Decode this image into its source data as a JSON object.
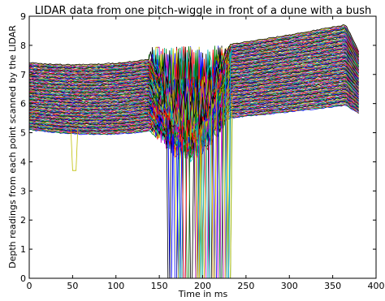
{
  "chart_data": {
    "type": "line",
    "title": "LIDAR data from one pitch-wiggle in front of a dune with a bush",
    "xlabel": "Time in ms",
    "ylabel": "Depth readings from each point scanned by the LIDAR",
    "xlim": [
      0,
      400
    ],
    "ylim": [
      0,
      9
    ],
    "xticks": [
      "0",
      "50",
      "100",
      "150",
      "200",
      "250",
      "300",
      "350",
      "400"
    ],
    "yticks": [
      "0",
      "1",
      "2",
      "3",
      "4",
      "5",
      "6",
      "7",
      "8",
      "9"
    ],
    "grid": false,
    "legend": "none",
    "series_count": 140,
    "x_range": [
      0,
      380
    ],
    "depth_band_start": [
      5.1,
      7.4
    ],
    "depth_band_end": [
      6.0,
      8.8
    ],
    "noisy_region": [
      138,
      232
    ],
    "dropout_region": [
      160,
      232
    ],
    "colors": [
      "#0000ff",
      "#008000",
      "#ff0000",
      "#00bfbf",
      "#bf00bf",
      "#bfbf00",
      "#000000"
    ]
  }
}
